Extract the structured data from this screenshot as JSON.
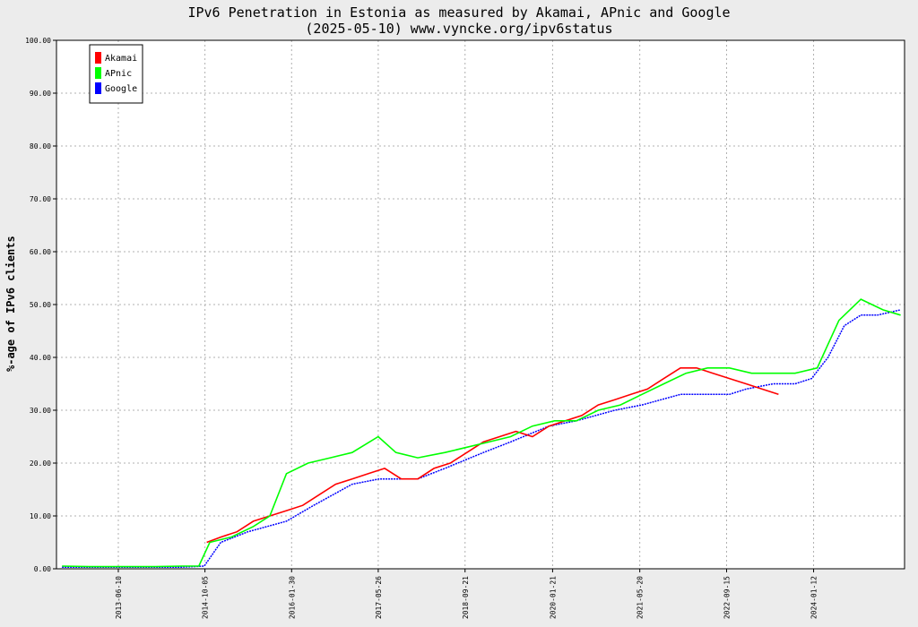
{
  "chart_data": {
    "type": "line",
    "title": "IPv6 Penetration in Estonia as measured by Akamai, APnic and Google",
    "subtitle": "(2025-05-10) www.vyncke.org/ipv6status",
    "ylabel": "%-age of IPv6 clients",
    "xlabel": "",
    "ylim": [
      0,
      100
    ],
    "xlim": [
      "2012-07-01",
      "2025-06-01"
    ],
    "y_ticks": [
      "0.00",
      "10.00",
      "20.00",
      "30.00",
      "40.00",
      "50.00",
      "60.00",
      "70.00",
      "80.00",
      "90.00",
      "100.00"
    ],
    "x_ticks": [
      "2013-06-10",
      "2014-10-05",
      "2016-01-30",
      "2017-05-26",
      "2018-09-21",
      "2020-01-21",
      "2021-05-20",
      "2022-09-15",
      "2024-01-12"
    ],
    "grid": true,
    "legend_position": "top-left",
    "colors": {
      "Akamai": "#ff0000",
      "APnic": "#00ff00",
      "Google": "#0000ff"
    },
    "series": [
      {
        "name": "Akamai",
        "x": [
          "2014-10-15",
          "2015-01-01",
          "2015-04-01",
          "2015-07-01",
          "2015-10-01",
          "2016-01-01",
          "2016-04-01",
          "2016-07-01",
          "2016-10-01",
          "2017-01-01",
          "2017-04-01",
          "2017-07-01",
          "2017-10-01",
          "2018-01-01",
          "2018-04-01",
          "2018-07-01",
          "2018-10-01",
          "2019-01-01",
          "2019-04-01",
          "2019-07-01",
          "2019-10-01",
          "2020-01-01",
          "2020-04-01",
          "2020-07-01",
          "2020-10-01",
          "2021-01-01",
          "2021-04-01",
          "2021-07-01",
          "2021-10-01",
          "2022-01-01",
          "2022-04-01",
          "2022-07-01",
          "2022-10-01",
          "2023-01-01",
          "2023-04-01",
          "2023-07-01"
        ],
        "y": [
          5,
          6,
          7,
          9,
          10,
          11,
          12,
          14,
          16,
          17,
          18,
          19,
          17,
          17,
          19,
          20,
          22,
          24,
          25,
          26,
          25,
          27,
          28,
          29,
          31,
          32,
          33,
          34,
          36,
          38,
          38,
          37,
          36,
          35,
          34,
          33
        ]
      },
      {
        "name": "APnic",
        "x": [
          "2012-08-01",
          "2013-01-01",
          "2013-06-01",
          "2014-01-01",
          "2014-06-01",
          "2014-09-01",
          "2014-11-01",
          "2015-03-01",
          "2015-07-01",
          "2015-10-01",
          "2016-01-01",
          "2016-05-01",
          "2016-09-01",
          "2017-01-01",
          "2017-05-26",
          "2017-09-01",
          "2018-01-01",
          "2018-06-01",
          "2018-10-01",
          "2019-02-01",
          "2019-06-01",
          "2019-10-01",
          "2020-02-01",
          "2020-06-01",
          "2020-10-01",
          "2021-02-01",
          "2021-06-01",
          "2021-10-01",
          "2022-02-01",
          "2022-06-01",
          "2022-10-01",
          "2023-02-01",
          "2023-06-01",
          "2023-10-01",
          "2024-02-01",
          "2024-06-01",
          "2024-10-01",
          "2025-02-01",
          "2025-05-10"
        ],
        "y": [
          0.5,
          0.4,
          0.4,
          0.4,
          0.5,
          0.5,
          5,
          6,
          8,
          10,
          18,
          20,
          21,
          22,
          25,
          22,
          21,
          22,
          23,
          24,
          25,
          27,
          28,
          28,
          30,
          31,
          33,
          35,
          37,
          38,
          38,
          37,
          37,
          37,
          38,
          47,
          51,
          49,
          48
        ]
      },
      {
        "name": "Google",
        "x": [
          "2012-08-01",
          "2013-06-01",
          "2014-06-01",
          "2014-10-01",
          "2015-01-01",
          "2015-06-01",
          "2016-01-01",
          "2016-06-01",
          "2017-01-01",
          "2017-06-01",
          "2018-01-01",
          "2018-06-01",
          "2019-01-01",
          "2019-06-01",
          "2020-01-01",
          "2020-06-01",
          "2021-01-01",
          "2021-06-01",
          "2022-01-01",
          "2022-06-01",
          "2022-10-01",
          "2023-01-01",
          "2023-06-01",
          "2023-10-01",
          "2024-01-01",
          "2024-04-01",
          "2024-07-01",
          "2024-10-01",
          "2025-01-01",
          "2025-05-10"
        ],
        "y": [
          0.3,
          0.3,
          0.3,
          0.5,
          5,
          7,
          9,
          12,
          16,
          17,
          17,
          19,
          22,
          24,
          27,
          28,
          30,
          31,
          33,
          33,
          33,
          34,
          35,
          35,
          36,
          40,
          46,
          48,
          48,
          49
        ]
      }
    ]
  }
}
